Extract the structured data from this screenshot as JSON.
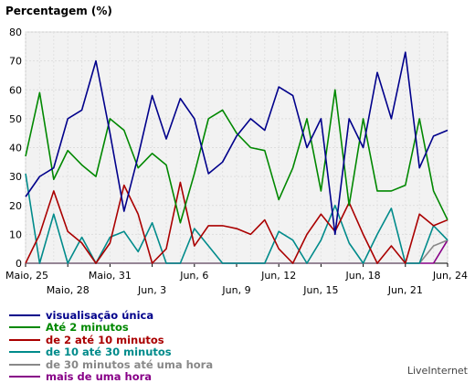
{
  "chart_data": {
    "type": "line",
    "title": "Percentagem (%)",
    "ylim": [
      0,
      80
    ],
    "yticks": [
      0,
      10,
      20,
      30,
      40,
      50,
      60,
      70,
      80
    ],
    "grid": true,
    "x_tick_labels": [
      "Maio, 25",
      "Maio, 28",
      "Maio, 31",
      "Jun, 3",
      "Jun, 6",
      "Jun, 9",
      "Jun, 12",
      "Jun, 15",
      "Jun, 18",
      "Jun, 21",
      "Jun, 24"
    ],
    "series": [
      {
        "name": "visualisação única",
        "color": "#00008b",
        "values": [
          23,
          30,
          33,
          50,
          53,
          70,
          45,
          18,
          37,
          58,
          43,
          57,
          50,
          31,
          35,
          44,
          50,
          46,
          61,
          58,
          40,
          50,
          10,
          50,
          40,
          66,
          50,
          73,
          33,
          44,
          46
        ]
      },
      {
        "name": "Até 2 minutos",
        "color": "#008800",
        "values": [
          37,
          59,
          29,
          39,
          34,
          30,
          50,
          46,
          33,
          38,
          34,
          14,
          31,
          50,
          53,
          45,
          40,
          39,
          22,
          33,
          50,
          25,
          60,
          20,
          50,
          25,
          25,
          27,
          50,
          25,
          15
        ]
      },
      {
        "name": "de 2 até 10 minutos",
        "color": "#aa0000",
        "values": [
          0,
          10,
          25,
          11,
          7,
          0,
          7,
          27,
          17,
          0,
          5,
          28,
          6,
          13,
          13,
          12,
          10,
          15,
          5,
          0,
          10,
          17,
          11,
          21,
          10,
          0,
          6,
          0,
          17,
          13,
          15
        ]
      },
      {
        "name": "de 10 até 30 minutos",
        "color": "#008b8b",
        "values": [
          31,
          0,
          17,
          0,
          9,
          0,
          9,
          11,
          4,
          14,
          0,
          0,
          12,
          6,
          0,
          0,
          0,
          0,
          11,
          8,
          0,
          8,
          20,
          7,
          0,
          10,
          19,
          0,
          0,
          13,
          8
        ]
      },
      {
        "name": "de 30 minutos até uma hora",
        "color": "#888888",
        "values": [
          0,
          0,
          0,
          0,
          0,
          0,
          0,
          0,
          0,
          0,
          0,
          0,
          0,
          0,
          0,
          0,
          0,
          0,
          0,
          0,
          0,
          0,
          0,
          0,
          0,
          0,
          0,
          0,
          0,
          6,
          8
        ]
      },
      {
        "name": "mais de uma hora",
        "color": "#880088",
        "values": [
          0,
          0,
          0,
          0,
          0,
          0,
          0,
          0,
          0,
          0,
          0,
          0,
          0,
          0,
          0,
          0,
          0,
          0,
          0,
          0,
          0,
          0,
          0,
          0,
          0,
          0,
          0,
          0,
          0,
          0,
          8
        ]
      }
    ]
  },
  "brand": "LiveInternet"
}
